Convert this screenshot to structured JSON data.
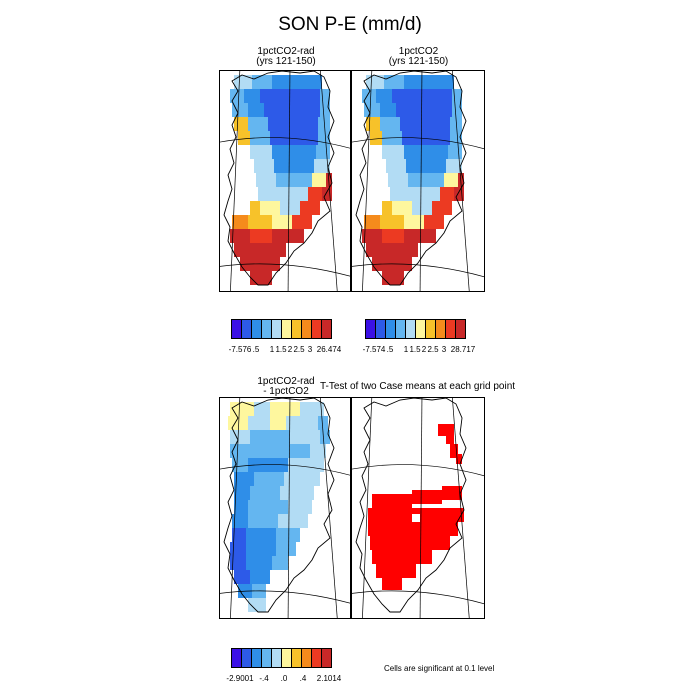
{
  "title": "SON P-E (mm/d)",
  "panels": [
    {
      "title_line1": "1pctCO2-rad",
      "title_line2": "(yrs 121-150)"
    },
    {
      "title_line1": "1pctCO2",
      "title_line2": "(yrs 121-150)"
    },
    {
      "title_line1": "1pctCO2-rad",
      "title_line2": "- 1pctCO2"
    },
    {
      "title_line1": "T-Test of two Case means at each grid point",
      "title_line2": ""
    }
  ],
  "colorbars": [
    {
      "min_label": "-7.576",
      "labels": [
        ".5",
        "1",
        "1.5",
        "2",
        "2.5",
        "3"
      ],
      "max_label": "26.474"
    },
    {
      "min_label": "-7.574",
      "labels": [
        ".5",
        "1",
        "1.5",
        "2",
        "2.5",
        "3"
      ],
      "max_label": "28.717"
    },
    {
      "min_label": "-2.9001",
      "labels": [
        "-.4",
        ".0",
        ".4"
      ],
      "max_label": "2.1014"
    }
  ],
  "colors": {
    "fill_colors_top": [
      "#3b10e6",
      "#2d5ae8",
      "#2f8ee8",
      "#64b6f0",
      "#b2dcf4",
      "#fef79e",
      "#f7c22a",
      "#f58b1c",
      "#ec3a22",
      "#c82828"
    ],
    "fill_colors_diff": [
      "#3b10e6",
      "#2d5ae8",
      "#2f8ee8",
      "#64b6f0",
      "#b2dcf4",
      "#fef79e",
      "#f7c22a",
      "#f58b1c",
      "#ec3a22",
      "#c82828"
    ],
    "significance": "#ff0000"
  },
  "significance_note": "Cells are significant at 0.1 level"
}
